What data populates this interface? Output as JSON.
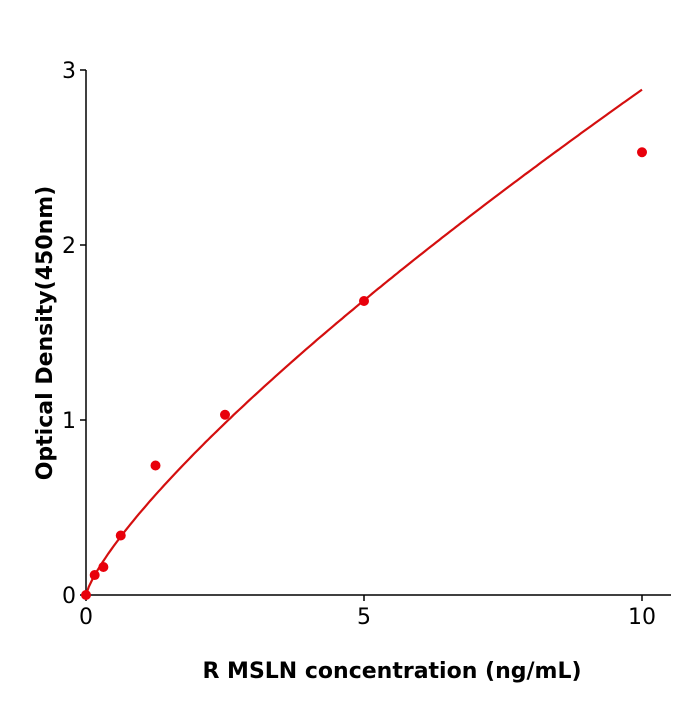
{
  "chart_data": {
    "type": "scatter",
    "xlabel": "R  MSLN concentration (ng/mL)",
    "ylabel": "Optical Density(450nm)",
    "xlim": [
      0,
      10.5
    ],
    "ylim": [
      0,
      3
    ],
    "xticks": [
      0,
      5,
      10
    ],
    "yticks": [
      0,
      1,
      2,
      3
    ],
    "grid": false,
    "point_color": "#e8000b",
    "line_color": "#d40f0f",
    "series": [
      {
        "x": [
          0,
          0.156,
          0.3125,
          0.625,
          1.25,
          2.5,
          5,
          10
        ],
        "y": [
          0.0,
          0.114,
          0.16,
          0.34,
          0.74,
          1.03,
          1.68,
          2.53
        ]
      }
    ],
    "fit_curve": "smooth curve through points"
  }
}
